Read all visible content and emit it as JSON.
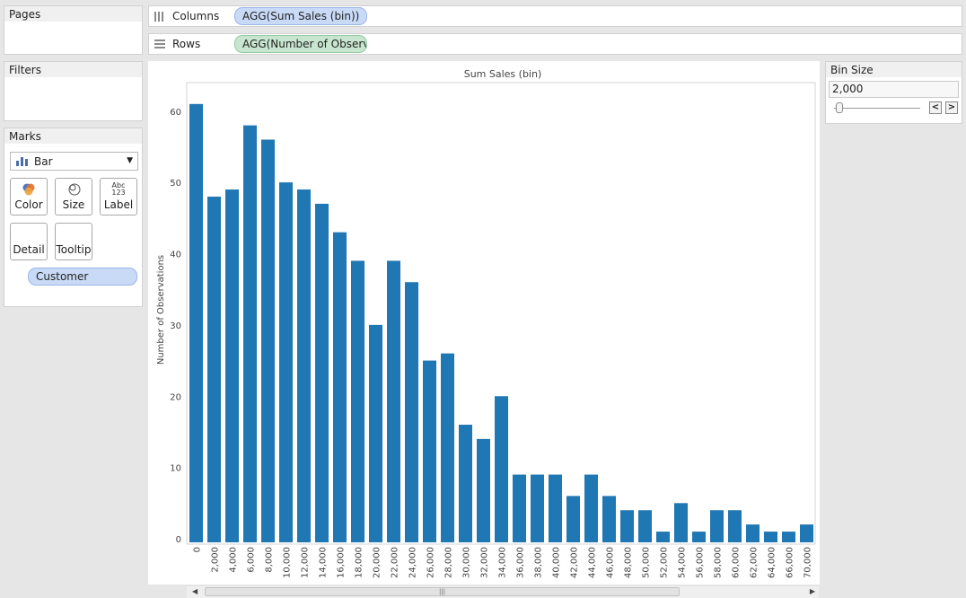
{
  "panels": {
    "pages": {
      "title": "Pages"
    },
    "filters": {
      "title": "Filters"
    },
    "marks": {
      "title": "Marks",
      "mark_type": "Bar",
      "buttons": {
        "color": "Color",
        "size": "Size",
        "label": "Label",
        "detail": "Detail",
        "tooltip": "Tooltip"
      },
      "label_icon_top": "Abc",
      "label_icon_bottom": "123",
      "pill": "Customer"
    }
  },
  "shelves": {
    "columns": {
      "label": "Columns",
      "pill": "AGG(Sum Sales (bin))"
    },
    "rows": {
      "label": "Rows",
      "pill": "AGG(Number of Observa.."
    }
  },
  "bin_size": {
    "title": "Bin Size",
    "value": "2,000",
    "prev": "<",
    "next": ">"
  },
  "scrollbar": {
    "grip": "|||"
  },
  "colors": {
    "bar": "#1f77b4",
    "accent_blue_pill": "#c9daf7",
    "accent_green_pill": "#c8e6cf"
  },
  "chart_data": {
    "type": "bar",
    "title": "Sum Sales (bin)",
    "xlabel": "",
    "ylabel": "Number of Observations",
    "ylim": [
      0,
      64
    ],
    "yticks": [
      0,
      10,
      20,
      30,
      40,
      50,
      60
    ],
    "categories": [
      "0",
      "2,000",
      "4,000",
      "6,000",
      "8,000",
      "10,000",
      "12,000",
      "14,000",
      "16,000",
      "18,000",
      "20,000",
      "22,000",
      "24,000",
      "26,000",
      "28,000",
      "30,000",
      "32,000",
      "34,000",
      "36,000",
      "38,000",
      "40,000",
      "42,000",
      "44,000",
      "46,000",
      "48,000",
      "50,000",
      "52,000",
      "54,000",
      "56,000",
      "58,000",
      "60,000",
      "62,000",
      "64,000",
      "66,000",
      "70,000"
    ],
    "values": [
      61,
      48,
      49,
      58,
      56,
      50,
      49,
      47,
      43,
      39,
      30,
      39,
      36,
      25,
      26,
      16,
      14,
      20,
      9,
      9,
      9,
      6,
      9,
      6,
      4,
      4,
      1,
      5,
      1,
      4,
      4,
      2,
      1,
      1,
      2
    ],
    "grid": false
  }
}
